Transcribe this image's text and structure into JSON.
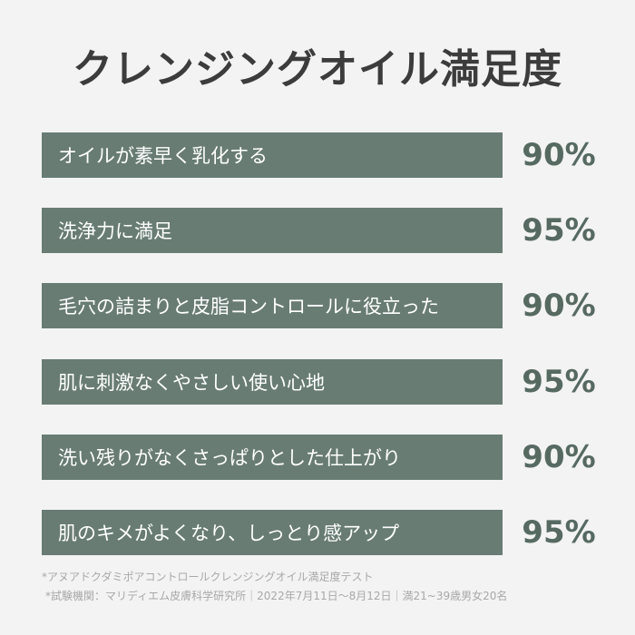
{
  "chart_data": {
    "type": "bar",
    "title": "クレンジングオイル満足度",
    "categories": [
      "オイルが素早く乳化する",
      "洗浄力に満足",
      "毛穴の詰まりと皮脂コントロールに役立った",
      "肌に刺激なくやさしい使い心地",
      "洗い残りがなくさっぱりとした仕上がり",
      "肌のキメがよくなり、しっとり感アップ"
    ],
    "values": [
      90,
      95,
      90,
      95,
      90,
      95
    ],
    "value_labels": [
      "90%",
      "95%",
      "90%",
      "95%",
      "90%",
      "95%"
    ],
    "bar_color": "#687c74",
    "value_color": "#566a62",
    "title_color": "#3c3c3c",
    "background": "#f3f3f3"
  },
  "footnotes": [
    "*アヌアドクダミポアコントロールクレンジングオイル満足度テスト",
    "*試験機関：マリディエム皮膚科学研究所｜2022年7月11日〜8月12日｜満21~39歳男女20名"
  ]
}
